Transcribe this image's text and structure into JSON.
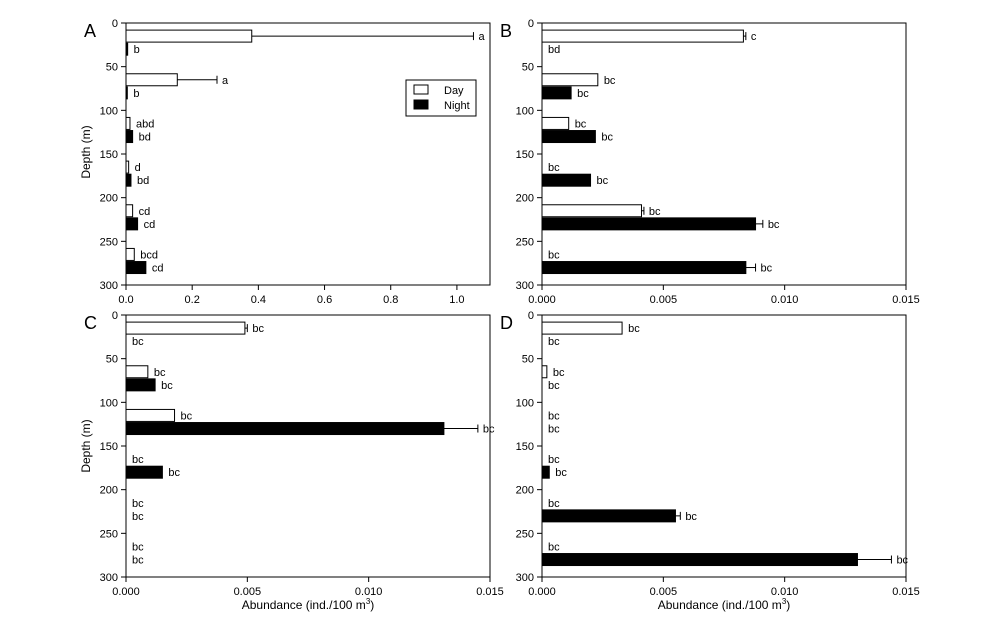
{
  "figure": {
    "legend": {
      "day_label": "Day",
      "night_label": "Night"
    },
    "y_label": "Depth (m)",
    "x_label_prefix": "Abundance (ind./100 m",
    "x_label_sup": "3",
    "x_label_suffix": ")"
  },
  "chart_data": [
    {
      "panel": "A",
      "type": "bar",
      "orientation": "horizontal",
      "xlim": [
        0,
        1.1
      ],
      "ylim": [
        0,
        300
      ],
      "xticks": [
        "0.0",
        "0.2",
        "0.4",
        "0.6",
        "0.8",
        "1.0"
      ],
      "xtick_values": [
        0,
        0.2,
        0.4,
        0.6,
        0.8,
        1.0
      ],
      "yticks": [
        "0",
        "50",
        "100",
        "150",
        "200",
        "250",
        "300"
      ],
      "ytick_values": [
        0,
        50,
        100,
        150,
        200,
        250,
        300
      ],
      "legend": "top-right",
      "series": [
        {
          "name": "Day",
          "color": "#ffffff",
          "depths": [
            15,
            65,
            115,
            165,
            215,
            265
          ],
          "values": [
            0.38,
            0.155,
            0.012,
            0.008,
            0.02,
            0.025
          ],
          "errors": [
            0.67,
            0.12,
            0,
            0,
            0,
            0
          ],
          "labels": [
            "a",
            "a",
            "abd",
            "d",
            "cd",
            "bcd"
          ]
        },
        {
          "name": "Night",
          "color": "#000000",
          "depths": [
            30,
            80,
            130,
            180,
            230,
            280
          ],
          "values": [
            0.005,
            0.004,
            0.02,
            0.015,
            0.035,
            0.06
          ],
          "errors": [
            0,
            0,
            0,
            0,
            0,
            0
          ],
          "labels": [
            "b",
            "b",
            "bd",
            "bd",
            "cd",
            "cd"
          ]
        }
      ]
    },
    {
      "panel": "B",
      "type": "bar",
      "orientation": "horizontal",
      "xlim": [
        0,
        0.015
      ],
      "ylim": [
        0,
        300
      ],
      "xticks": [
        "0.000",
        "0.005",
        "0.010",
        "0.015"
      ],
      "xtick_values": [
        0,
        0.005,
        0.01,
        0.015
      ],
      "yticks": [
        "0",
        "50",
        "100",
        "150",
        "200",
        "250",
        "300"
      ],
      "ytick_values": [
        0,
        50,
        100,
        150,
        200,
        250,
        300
      ],
      "series": [
        {
          "name": "Day",
          "color": "#ffffff",
          "depths": [
            15,
            65,
            115,
            165,
            215,
            265
          ],
          "values": [
            0.0083,
            0.0023,
            0.0011,
            0,
            0.0041,
            0
          ],
          "errors": [
            0.0001,
            0,
            0,
            0,
            0.0001,
            0
          ],
          "labels": [
            "c",
            "bc",
            "bc",
            "bc",
            "bc",
            "bc"
          ]
        },
        {
          "name": "Night",
          "color": "#000000",
          "depths": [
            30,
            80,
            130,
            180,
            230,
            280
          ],
          "values": [
            0,
            0.0012,
            0.0022,
            0.002,
            0.0088,
            0.0084
          ],
          "errors": [
            0,
            0,
            0,
            0,
            0.0003,
            0.0004
          ],
          "labels": [
            "bd",
            "bc",
            "bc",
            "bc",
            "bc",
            "bc"
          ]
        }
      ]
    },
    {
      "panel": "C",
      "type": "bar",
      "orientation": "horizontal",
      "xlim": [
        0,
        0.015
      ],
      "ylim": [
        0,
        300
      ],
      "xticks": [
        "0.000",
        "0.005",
        "0.010",
        "0.015"
      ],
      "xtick_values": [
        0,
        0.005,
        0.01,
        0.015
      ],
      "yticks": [
        "0",
        "50",
        "100",
        "150",
        "200",
        "250",
        "300"
      ],
      "ytick_values": [
        0,
        50,
        100,
        150,
        200,
        250,
        300
      ],
      "series": [
        {
          "name": "Day",
          "color": "#ffffff",
          "depths": [
            15,
            65,
            115,
            165,
            215,
            265
          ],
          "values": [
            0.0049,
            0.0009,
            0.002,
            0,
            0,
            0
          ],
          "errors": [
            0.0001,
            0,
            0,
            0,
            0,
            0
          ],
          "labels": [
            "bc",
            "bc",
            "bc",
            "bc",
            "bc",
            "bc"
          ]
        },
        {
          "name": "Night",
          "color": "#000000",
          "depths": [
            30,
            80,
            130,
            180,
            230,
            280
          ],
          "values": [
            0,
            0.0012,
            0.0131,
            0.0015,
            0,
            0
          ],
          "errors": [
            0,
            0,
            0.0014,
            0,
            0,
            0
          ],
          "labels": [
            "bc",
            "bc",
            "bc",
            "bc",
            "bc",
            "bc"
          ]
        }
      ]
    },
    {
      "panel": "D",
      "type": "bar",
      "orientation": "horizontal",
      "xlim": [
        0,
        0.015
      ],
      "ylim": [
        0,
        300
      ],
      "xticks": [
        "0.000",
        "0.005",
        "0.010",
        "0.015"
      ],
      "xtick_values": [
        0,
        0.005,
        0.01,
        0.015
      ],
      "yticks": [
        "0",
        "50",
        "100",
        "150",
        "200",
        "250",
        "300"
      ],
      "ytick_values": [
        0,
        50,
        100,
        150,
        200,
        250,
        300
      ],
      "series": [
        {
          "name": "Day",
          "color": "#ffffff",
          "depths": [
            15,
            65,
            115,
            165,
            215,
            265
          ],
          "values": [
            0.0033,
            0.0002,
            0,
            0,
            0,
            0
          ],
          "errors": [
            0,
            0,
            0,
            0,
            0,
            0
          ],
          "labels": [
            "bc",
            "bc",
            "bc",
            "bc",
            "bc",
            "bc"
          ]
        },
        {
          "name": "Night",
          "color": "#000000",
          "depths": [
            30,
            80,
            130,
            180,
            230,
            280
          ],
          "values": [
            0,
            0,
            0,
            0.0003,
            0.0055,
            0.013
          ],
          "errors": [
            0,
            0,
            0,
            0,
            0.0002,
            0.0014
          ],
          "labels": [
            "bc",
            "bc",
            "bc",
            "bc",
            "bc",
            "bc"
          ]
        }
      ]
    }
  ]
}
